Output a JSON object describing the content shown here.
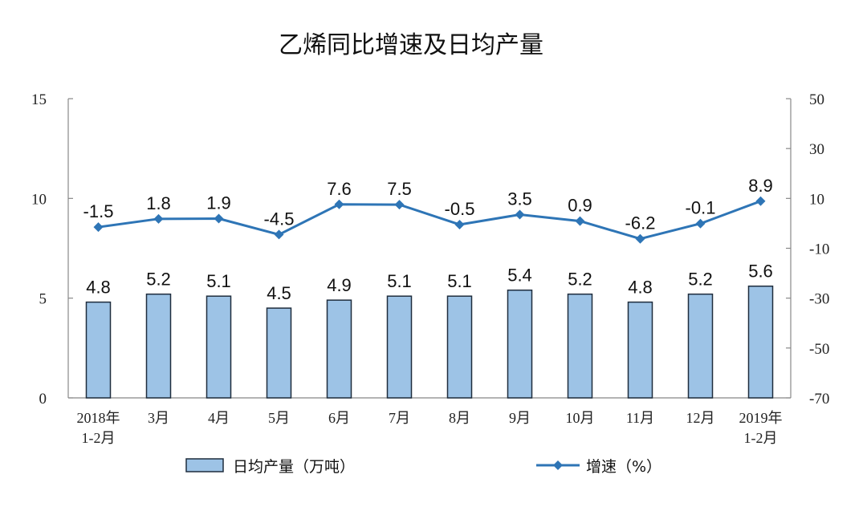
{
  "chart_data": {
    "type": "bar+line",
    "title": "乙烯同比增速及日均产量",
    "categories": [
      [
        "2018年",
        "1-2月"
      ],
      [
        "3月"
      ],
      [
        "4月"
      ],
      [
        "5月"
      ],
      [
        "6月"
      ],
      [
        "7月"
      ],
      [
        "8月"
      ],
      [
        "9月"
      ],
      [
        "10月"
      ],
      [
        "11月"
      ],
      [
        "12月"
      ],
      [
        "2019年",
        "1-2月"
      ]
    ],
    "bar_series": {
      "name": "日均产量（万吨）",
      "values": [
        4.8,
        5.2,
        5.1,
        4.5,
        4.9,
        5.1,
        5.1,
        5.4,
        5.2,
        4.8,
        5.2,
        5.6
      ],
      "labels": [
        "4.8",
        "5.2",
        "5.1",
        "4.5",
        "4.9",
        "5.1",
        "5.1",
        "5.4",
        "5.2",
        "4.8",
        "5.2",
        "5.6"
      ],
      "axis": "left",
      "fill": "#9dc3e6",
      "stroke": "#1f2d3d"
    },
    "line_series": {
      "name": "增速（%）",
      "values": [
        -1.5,
        1.8,
        1.9,
        -4.5,
        7.6,
        7.5,
        -0.5,
        3.5,
        0.9,
        -6.2,
        -0.1,
        8.9
      ],
      "labels": [
        "-1.5",
        "1.8",
        "1.9",
        "-4.5",
        "7.6",
        "7.5",
        "-0.5",
        "3.5",
        "0.9",
        "-6.2",
        "-0.1",
        "8.9"
      ],
      "axis": "right",
      "color": "#2e75b6"
    },
    "left_axis": {
      "ylim": [
        0,
        15
      ],
      "ticks": [
        "0",
        "5",
        "10",
        "15"
      ]
    },
    "right_axis": {
      "ylim": [
        -70,
        50
      ],
      "ticks": [
        "-70",
        "-50",
        "-30",
        "-10",
        "10",
        "30",
        "50"
      ]
    },
    "grid": false,
    "legend_position": "bottom"
  }
}
